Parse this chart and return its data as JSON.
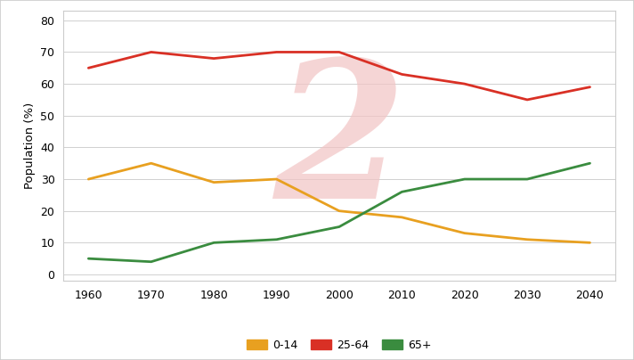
{
  "years": [
    1960,
    1970,
    1980,
    1990,
    2000,
    2010,
    2020,
    2030,
    2040
  ],
  "age_0_14": [
    30,
    35,
    29,
    30,
    20,
    18,
    13,
    11,
    10
  ],
  "age_25_64": [
    65,
    70,
    68,
    70,
    70,
    63,
    60,
    55,
    59
  ],
  "age_65_plus": [
    5,
    4,
    10,
    11,
    15,
    26,
    30,
    30,
    35
  ],
  "color_0_14": "#E8A020",
  "color_25_64": "#D93025",
  "color_65_plus": "#3A8C3F",
  "ylabel": "Population (%)",
  "yticks": [
    0,
    10,
    20,
    30,
    40,
    50,
    60,
    70,
    80
  ],
  "ylim": [
    -2,
    83
  ],
  "xlim": [
    1956,
    2044
  ],
  "legend_labels": [
    "0-14",
    "25-64",
    "65+"
  ],
  "background_color": "#ffffff",
  "grid_color": "#d0d0d0",
  "line_width": 2.0,
  "watermark_color": "#f2c4c4",
  "border_color": "#cccccc",
  "tick_fontsize": 9,
  "ylabel_fontsize": 9.5
}
